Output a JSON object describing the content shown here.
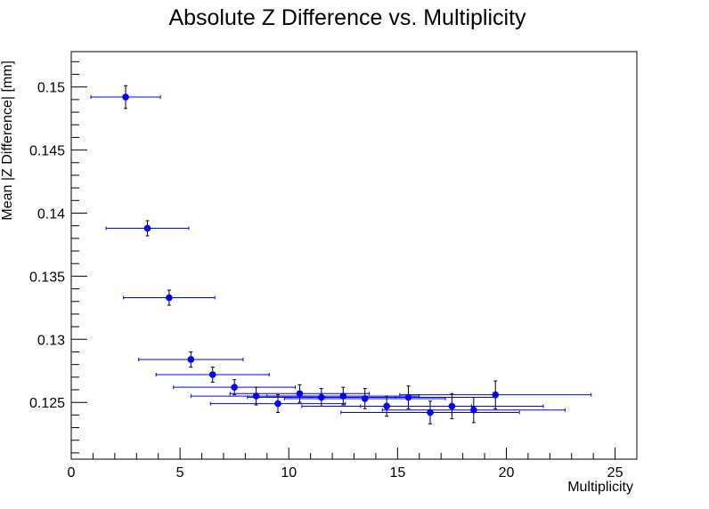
{
  "chart_data": {
    "type": "scatter",
    "title": "Absolute Z Difference vs. Multiplicity",
    "xlabel": "Multiplicity",
    "ylabel": "Mean |Z Difference| [mm]",
    "xlim": [
      0,
      26
    ],
    "ylim": [
      0.1205,
      0.1528
    ],
    "xticks": [
      0,
      5,
      10,
      15,
      20,
      25
    ],
    "xtick_labels": [
      "0",
      "5",
      "10",
      "15",
      "20",
      "25"
    ],
    "yticks": [
      0.125,
      0.13,
      0.135,
      0.14,
      0.145,
      0.15
    ],
    "ytick_labels": [
      "0.125",
      "0.13",
      "0.135",
      "0.14",
      "0.145",
      "0.15"
    ],
    "grid": false,
    "legend": "none",
    "marker_color": "#0000ff",
    "points": [
      {
        "x": 2.5,
        "y": 0.1492,
        "xerr": 1.6,
        "yerr": 0.0009
      },
      {
        "x": 3.5,
        "y": 0.1388,
        "xerr": 1.9,
        "yerr": 0.0006
      },
      {
        "x": 4.5,
        "y": 0.1333,
        "xerr": 2.1,
        "yerr": 0.0006
      },
      {
        "x": 5.5,
        "y": 0.1284,
        "xerr": 2.4,
        "yerr": 0.0006
      },
      {
        "x": 6.5,
        "y": 0.1272,
        "xerr": 2.6,
        "yerr": 0.0006
      },
      {
        "x": 7.5,
        "y": 0.1262,
        "xerr": 2.8,
        "yerr": 0.0006
      },
      {
        "x": 8.5,
        "y": 0.1255,
        "xerr": 3.0,
        "yerr": 0.0007
      },
      {
        "x": 9.5,
        "y": 0.1249,
        "xerr": 3.1,
        "yerr": 0.0007
      },
      {
        "x": 10.5,
        "y": 0.1257,
        "xerr": 3.2,
        "yerr": 0.0007
      },
      {
        "x": 11.5,
        "y": 0.1254,
        "xerr": 3.4,
        "yerr": 0.0007
      },
      {
        "x": 12.5,
        "y": 0.1255,
        "xerr": 3.5,
        "yerr": 0.0007
      },
      {
        "x": 13.5,
        "y": 0.1253,
        "xerr": 3.7,
        "yerr": 0.0008
      },
      {
        "x": 14.5,
        "y": 0.1247,
        "xerr": 3.9,
        "yerr": 0.0008
      },
      {
        "x": 15.5,
        "y": 0.1254,
        "xerr": 4.0,
        "yerr": 0.0009
      },
      {
        "x": 16.5,
        "y": 0.1242,
        "xerr": 4.1,
        "yerr": 0.0009
      },
      {
        "x": 17.5,
        "y": 0.1247,
        "xerr": 4.2,
        "yerr": 0.001
      },
      {
        "x": 18.5,
        "y": 0.1244,
        "xerr": 4.2,
        "yerr": 0.001
      },
      {
        "x": 19.5,
        "y": 0.1256,
        "xerr": 4.4,
        "yerr": 0.0011
      }
    ]
  }
}
